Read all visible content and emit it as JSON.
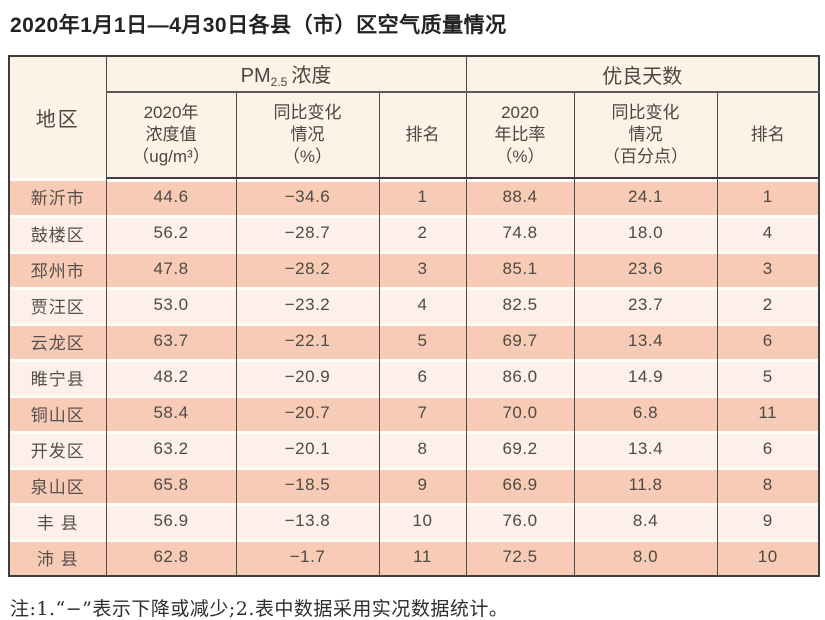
{
  "title": "2020年1月1日—4月30日各县（市）区空气质量情况",
  "note": "注:1.“−”表示下降或减少;2.表中数据采用实况数据统计。",
  "colors": {
    "header_bg": "#fcf3e6",
    "row_salmon": "#f7cbb5",
    "row_light": "#fcf0e9",
    "border_dark": "#3d3d3d",
    "grid_line": "#4b4b4b",
    "text": "#4e4a48"
  },
  "table": {
    "header": {
      "region": "地区",
      "pm_group": {
        "prefix": "PM",
        "sub": "2.5",
        "suffix": "浓度"
      },
      "good_days_group": "优良天数",
      "conc": {
        "line1": "2020年",
        "line2": "浓度值",
        "line3": "（ug/m³）"
      },
      "pm_change": {
        "line1": "同比变化",
        "line2": "情况",
        "line3": "（%）"
      },
      "pm_rank": "排名",
      "ratio": {
        "line1": "2020",
        "line2": "年比率",
        "line3": "（%）"
      },
      "days_change": {
        "line1": "同比变化",
        "line2": "情况",
        "line3": "（百分点）"
      },
      "days_rank": "排名"
    },
    "rows": [
      {
        "region": "新沂市",
        "values": [
          "44.6",
          "−34.6",
          "1",
          "88.4",
          "24.1",
          "1"
        ]
      },
      {
        "region": "鼓楼区",
        "values": [
          "56.2",
          "−28.7",
          "2",
          "74.8",
          "18.0",
          "4"
        ]
      },
      {
        "region": "邳州市",
        "values": [
          "47.8",
          "−28.2",
          "3",
          "85.1",
          "23.6",
          "3"
        ]
      },
      {
        "region": "贾汪区",
        "values": [
          "53.0",
          "−23.2",
          "4",
          "82.5",
          "23.7",
          "2"
        ]
      },
      {
        "region": "云龙区",
        "values": [
          "63.7",
          "−22.1",
          "5",
          "69.7",
          "13.4",
          "6"
        ]
      },
      {
        "region": "睢宁县",
        "values": [
          "48.2",
          "−20.9",
          "6",
          "86.0",
          "14.9",
          "5"
        ]
      },
      {
        "region": "铜山区",
        "values": [
          "58.4",
          "−20.7",
          "7",
          "70.0",
          "6.8",
          "11"
        ]
      },
      {
        "region": "开发区",
        "values": [
          "63.2",
          "−20.1",
          "8",
          "69.2",
          "13.4",
          "6"
        ]
      },
      {
        "region": "泉山区",
        "values": [
          "65.8",
          "−18.5",
          "9",
          "66.9",
          "11.8",
          "8"
        ]
      },
      {
        "region": "丰 县",
        "values": [
          "56.9",
          "−13.8",
          "10",
          "76.0",
          "8.4",
          "9"
        ]
      },
      {
        "region": "沛 县",
        "values": [
          "62.8",
          "−1.7",
          "11",
          "72.5",
          "8.0",
          "10"
        ]
      }
    ]
  }
}
